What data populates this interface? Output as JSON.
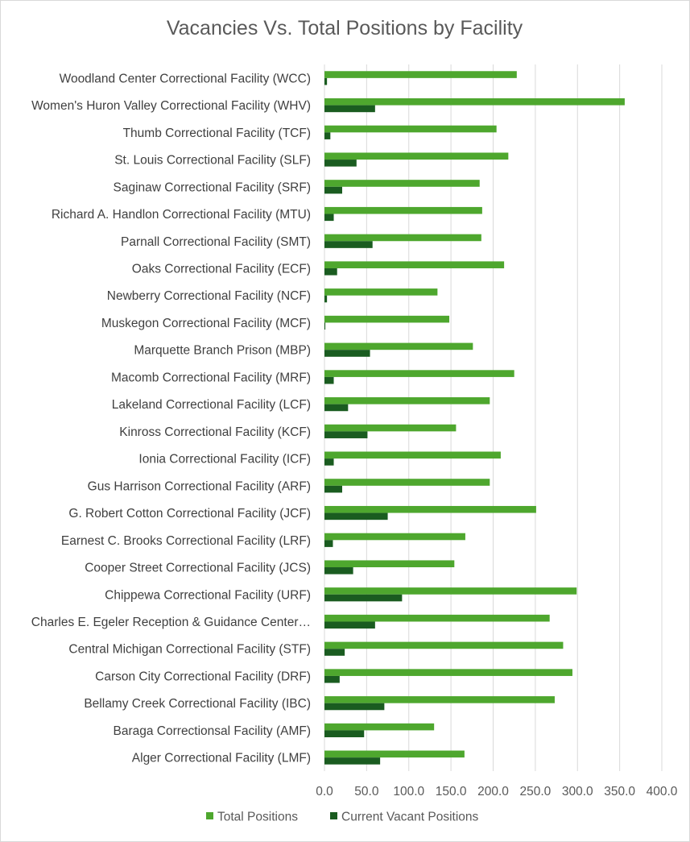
{
  "chart_data": {
    "type": "bar",
    "orientation": "horizontal",
    "title": "Vacancies Vs. Total Positions by Facility",
    "categories": [
      "Woodland Center Correctional Facility (WCC)",
      "Women's Huron Valley Correctional Facility (WHV)",
      "Thumb Correctional Facility (TCF)",
      "St. Louis Correctional Facility (SLF)",
      "Saginaw Correctional Facility (SRF)",
      "Richard A. Handlon Correctional Facility (MTU)",
      "Parnall Correctional Facility (SMT)",
      "Oaks Correctional Facility (ECF)",
      "Newberry Correctional Facility (NCF)",
      "Muskegon Correctional Facility (MCF)",
      "Marquette Branch Prison (MBP)",
      "Macomb Correctional Facility (MRF)",
      "Lakeland Correctional Facility (LCF)",
      "Kinross Correctional Facility (KCF)",
      "Ionia Correctional Facility (ICF)",
      "Gus Harrison Correctional Facility (ARF)",
      "G. Robert Cotton Correctional Facility (JCF)",
      "Earnest C. Brooks Correctional Facility (LRF)",
      "Cooper Street Correctional Facility (JCS)",
      "Chippewa Correctional Facility (URF)",
      "Charles E. Egeler Reception & Guidance Center…",
      "Central Michigan Correctional Facility (STF)",
      "Carson City Correctional Facility (DRF)",
      "Bellamy Creek Correctional Facility (IBC)",
      "Baraga Correctionsal Facility (AMF)",
      "Alger Correctional Facility (LMF)"
    ],
    "series": [
      {
        "name": "Total Positions",
        "color": "#4ea72e",
        "values": [
          228,
          356,
          204,
          218,
          184,
          187,
          186,
          213,
          134,
          148,
          176,
          225,
          196,
          156,
          209,
          196,
          251,
          167,
          154,
          299,
          267,
          283,
          294,
          273,
          130,
          166
        ]
      },
      {
        "name": "Current Vacant Positions",
        "color": "#1a5c20",
        "values": [
          3,
          60,
          7,
          38,
          21,
          11,
          57,
          15,
          3,
          1,
          54,
          11,
          28,
          51,
          11,
          21,
          75,
          10,
          34,
          92,
          60,
          24,
          18,
          71,
          47,
          66
        ]
      }
    ],
    "xlim": [
      0,
      400
    ],
    "xticks": [
      "0.0",
      "50.0",
      "100.0",
      "150.0",
      "200.0",
      "250.0",
      "300.0",
      "350.0",
      "400.0"
    ],
    "xlabel": "",
    "ylabel": "",
    "grid": "vertical",
    "legend_position": "bottom"
  }
}
